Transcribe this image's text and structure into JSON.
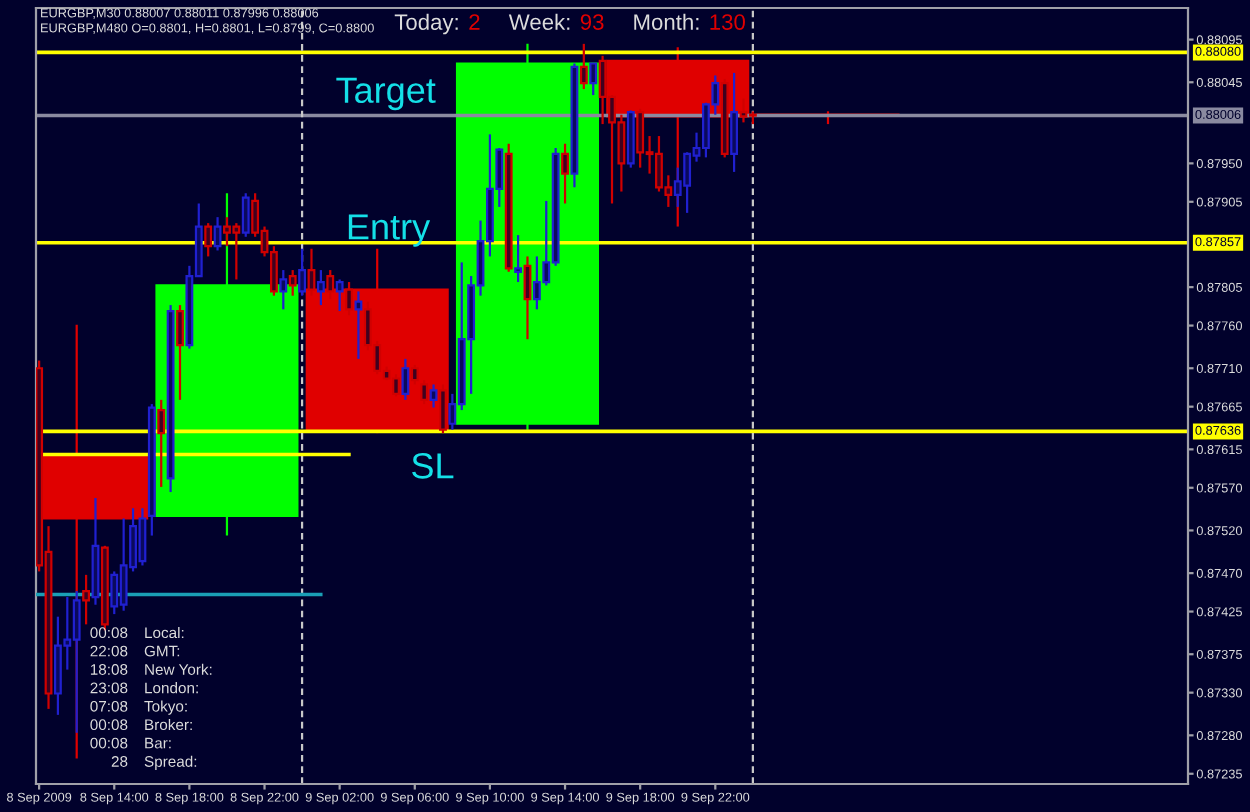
{
  "chart_data": {
    "type": "candlestick",
    "series": [
      {
        "x": [
          "2009-09-08T12:00",
          "2009-09-08T20:00",
          "2009-09-09T04:00",
          "2009-09-09T12:00",
          "2009-09-09T20:00",
          "2009-09-10T04:00"
        ],
        "ohlc": [
          [
            0.87609,
            0.87761,
            0.87253,
            0.87534
          ],
          [
            0.87537,
            0.87915,
            0.87514,
            0.87807
          ],
          [
            0.87802,
            0.8785,
            0.87634,
            0.87638
          ],
          [
            0.87645,
            0.8809,
            0.87638,
            0.88067
          ],
          [
            0.8807,
            0.88086,
            0.87876,
            0.88005
          ],
          [
            0.88007,
            0.88011,
            0.87996,
            0.88006
          ]
        ],
        "colors": [
          "#e00000",
          "#00ff00",
          "#e00000",
          "#00ff00",
          "#e00000",
          "#e00000"
        ]
      },
      {
        "x": [
          "2009-09-08T10:00",
          "2009-09-08T10:30",
          "2009-09-08T11:00",
          "2009-09-08T11:30",
          "2009-09-08T12:00",
          "2009-09-08T12:30",
          "2009-09-08T13:00",
          "2009-09-08T13:30",
          "2009-09-08T14:00",
          "2009-09-08T14:30",
          "2009-09-08T15:00",
          "2009-09-08T15:30",
          "2009-09-08T16:00",
          "2009-09-08T16:30",
          "2009-09-08T17:00",
          "2009-09-08T17:30",
          "2009-09-08T18:00",
          "2009-09-08T18:30",
          "2009-09-08T19:00",
          "2009-09-08T19:30",
          "2009-09-08T20:00",
          "2009-09-08T20:30",
          "2009-09-08T21:00",
          "2009-09-08T21:30",
          "2009-09-08T22:00",
          "2009-09-08T22:30",
          "2009-09-08T23:00",
          "2009-09-08T23:30",
          "2009-09-09T00:00",
          "2009-09-09T00:30",
          "2009-09-09T01:00",
          "2009-09-09T01:30",
          "2009-09-09T02:00",
          "2009-09-09T02:30",
          "2009-09-09T03:00",
          "2009-09-09T03:30",
          "2009-09-09T04:00",
          "2009-09-09T04:30",
          "2009-09-09T05:00",
          "2009-09-09T05:30",
          "2009-09-09T06:00",
          "2009-09-09T06:30",
          "2009-09-09T07:00",
          "2009-09-09T07:30",
          "2009-09-09T08:00",
          "2009-09-09T08:30",
          "2009-09-09T09:00",
          "2009-09-09T09:30",
          "2009-09-09T10:00",
          "2009-09-09T10:30",
          "2009-09-09T11:00",
          "2009-09-09T11:30",
          "2009-09-09T12:00",
          "2009-09-09T12:30",
          "2009-09-09T13:00",
          "2009-09-09T13:30",
          "2009-09-09T14:00",
          "2009-09-09T14:30",
          "2009-09-09T15:00",
          "2009-09-09T15:30",
          "2009-09-09T16:00",
          "2009-09-09T16:30",
          "2009-09-09T17:00",
          "2009-09-09T17:30",
          "2009-09-09T18:00",
          "2009-09-09T18:30",
          "2009-09-09T19:00",
          "2009-09-09T19:30",
          "2009-09-09T20:00",
          "2009-09-09T20:30",
          "2009-09-09T21:00",
          "2009-09-09T21:30",
          "2009-09-09T22:00",
          "2009-09-09T22:30",
          "2009-09-09T23:00",
          "2009-09-09T23:30",
          "2009-09-10T00:00"
        ],
        "ohlc": [
          [
            0.8771,
            0.87719,
            0.87472,
            0.87479
          ],
          [
            0.87495,
            0.87525,
            0.87311,
            0.87329
          ],
          [
            0.87329,
            0.87419,
            0.87304,
            0.87385
          ],
          [
            0.87385,
            0.87442,
            0.87357,
            0.87392
          ],
          [
            0.87392,
            0.87449,
            0.87283,
            0.87438
          ],
          [
            0.87449,
            0.87468,
            0.8741,
            0.87438
          ],
          [
            0.87442,
            0.87558,
            0.87433,
            0.87502
          ],
          [
            0.875,
            0.87502,
            0.87403,
            0.8741
          ],
          [
            0.87431,
            0.87472,
            0.87422,
            0.87468
          ],
          [
            0.87433,
            0.87534,
            0.87426,
            0.87479
          ],
          [
            0.87477,
            0.87546,
            0.87472,
            0.87525
          ],
          [
            0.87484,
            0.87546,
            0.87479,
            0.87534
          ],
          [
            0.87537,
            0.87668,
            0.87514,
            0.87664
          ],
          [
            0.87661,
            0.87673,
            0.87571,
            0.87634
          ],
          [
            0.87581,
            0.87784,
            0.87565,
            0.87777
          ],
          [
            0.87777,
            0.87784,
            0.87673,
            0.87737
          ],
          [
            0.87737,
            0.8783,
            0.87733,
            0.87818
          ],
          [
            0.87818,
            0.87903,
            0.87818,
            0.87876
          ],
          [
            0.87876,
            0.8788,
            0.87841,
            0.87853
          ],
          [
            0.87853,
            0.87887,
            0.87848,
            0.87876
          ],
          [
            0.87876,
            0.87887,
            0.87853,
            0.87869
          ],
          [
            0.87876,
            0.8788,
            0.87814,
            0.87869
          ],
          [
            0.87869,
            0.87915,
            0.87864,
            0.8791
          ],
          [
            0.87906,
            0.87915,
            0.87864,
            0.87869
          ],
          [
            0.87871,
            0.87876,
            0.87841,
            0.87846
          ],
          [
            0.87846,
            0.87853,
            0.87795,
            0.878
          ],
          [
            0.878,
            0.87825,
            0.87779,
            0.87814
          ],
          [
            0.87818,
            0.87825,
            0.87795,
            0.87807
          ],
          [
            0.878,
            0.8785,
            0.87795,
            0.87825
          ],
          [
            0.87825,
            0.8785,
            0.87795,
            0.87802
          ],
          [
            0.878,
            0.87825,
            0.87784,
            0.87811
          ],
          [
            0.87818,
            0.87825,
            0.87791,
            0.878
          ],
          [
            0.878,
            0.87814,
            0.87777,
            0.87811
          ],
          [
            0.87802,
            0.87811,
            0.87772,
            0.87779
          ],
          [
            0.87779,
            0.878,
            0.87721,
            0.87788
          ],
          [
            0.87779,
            0.87788,
            0.87731,
            0.87737
          ],
          [
            0.87737,
            0.87742,
            0.87703,
            0.87707
          ],
          [
            0.87707,
            0.87712,
            0.87696,
            0.87698
          ],
          [
            0.87698,
            0.87703,
            0.87677,
            0.8768
          ],
          [
            0.8768,
            0.87721,
            0.87673,
            0.8771
          ],
          [
            0.8771,
            0.87714,
            0.87691,
            0.87696
          ],
          [
            0.87691,
            0.87696,
            0.87668,
            0.87673
          ],
          [
            0.87673,
            0.87691,
            0.87664,
            0.87684
          ],
          [
            0.87684,
            0.87691,
            0.87634,
            0.87638
          ],
          [
            0.87645,
            0.8768,
            0.87638,
            0.87668
          ],
          [
            0.87668,
            0.87834,
            0.87661,
            0.87744
          ],
          [
            0.87744,
            0.87818,
            0.8768,
            0.87807
          ],
          [
            0.87807,
            0.87883,
            0.87795,
            0.87859
          ],
          [
            0.87859,
            0.87984,
            0.87841,
            0.8792
          ],
          [
            0.8792,
            0.87968,
            0.87899,
            0.87966
          ],
          [
            0.87961,
            0.87973,
            0.87823,
            0.87827
          ],
          [
            0.87823,
            0.87866,
            0.87811,
            0.87827
          ],
          [
            0.8783,
            0.87841,
            0.87744,
            0.87791
          ],
          [
            0.87791,
            0.87841,
            0.87779,
            0.87811
          ],
          [
            0.87811,
            0.87906,
            0.87807,
            0.87834
          ],
          [
            0.87834,
            0.87968,
            0.8783,
            0.87961
          ],
          [
            0.87961,
            0.87973,
            0.87903,
            0.87938
          ],
          [
            0.87938,
            0.88067,
            0.87922,
            0.88063
          ],
          [
            0.88063,
            0.8809,
            0.88037,
            0.88044
          ],
          [
            0.88044,
            0.88067,
            0.8803,
            0.88067
          ],
          [
            0.8807,
            0.88076,
            0.87996,
            0.88028
          ],
          [
            0.88028,
            0.8803,
            0.87903,
            0.87998
          ],
          [
            0.87998,
            0.88007,
            0.87917,
            0.8795
          ],
          [
            0.8795,
            0.88012,
            0.87945,
            0.8801
          ],
          [
            0.8801,
            0.88014,
            0.87945,
            0.87963
          ],
          [
            0.87963,
            0.87982,
            0.87938,
            0.87961
          ],
          [
            0.87961,
            0.87982,
            0.87917,
            0.87922
          ],
          [
            0.87922,
            0.87936,
            0.87899,
            0.87913
          ],
          [
            0.87913,
            0.87945,
            0.87899,
            0.87929
          ],
          [
            0.87924,
            0.87963,
            0.87892,
            0.87961
          ],
          [
            0.87959,
            0.87986,
            0.87952,
            0.87968
          ],
          [
            0.87968,
            0.88021,
            0.87957,
            0.88019
          ],
          [
            0.88019,
            0.88053,
            0.88007,
            0.88044
          ],
          [
            0.88044,
            0.88049,
            0.87957,
            0.87961
          ],
          [
            0.87961,
            0.88056,
            0.8794,
            0.8801
          ],
          [
            0.8801,
            0.88026,
            0.87998,
            0.88005
          ],
          [
            0.88007,
            0.88011,
            0.87996,
            0.88006
          ]
        ],
        "colors": [
          "#d00000",
          "#d00000",
          "#2020d0",
          "#2020d0",
          "#2020d0",
          "#d00000",
          "#2020d0",
          "#d00000",
          "#2020d0",
          "#2020d0",
          "#2020d0",
          "#2020d0",
          "#2020d0",
          "#d00000",
          "#2020d0",
          "#d00000",
          "#2020d0",
          "#2020d0",
          "#d00000",
          "#2020d0",
          "#d00000",
          "#d00000",
          "#2020d0",
          "#d00000",
          "#d00000",
          "#d00000",
          "#2020d0",
          "#d00000",
          "#2020d0",
          "#d00000",
          "#2020d0",
          "#d00000",
          "#2020d0",
          "#d00000",
          "#2020d0",
          "#d00000",
          "#d00000",
          "#d00000",
          "#d00000",
          "#2020d0",
          "#d00000",
          "#d00000",
          "#2020d0",
          "#d00000",
          "#2020d0",
          "#2020d0",
          "#2020d0",
          "#2020d0",
          "#2020d0",
          "#2020d0",
          "#d00000",
          "#2020d0",
          "#d00000",
          "#2020d0",
          "#2020d0",
          "#2020d0",
          "#d00000",
          "#2020d0",
          "#d00000",
          "#2020d0",
          "#d00000",
          "#d00000",
          "#d00000",
          "#2020d0",
          "#d00000",
          "#d00000",
          "#d00000",
          "#d00000",
          "#2020d0",
          "#2020d0",
          "#2020d0",
          "#2020d0",
          "#2020d0",
          "#d00000",
          "#2020d0",
          "#d00000",
          "#d00000"
        ]
      },
      {
        "type": "line",
        "x": [
          "2009-09-08T09:50",
          "2009-09-09T02:30"
        ],
        "values": [
          0.87609,
          0.87609
        ],
        "color": "#ffff00"
      },
      {
        "type": "line",
        "x": [
          "2009-09-08T09:50",
          "2009-09-09T01:00"
        ],
        "values": [
          0.87445,
          0.87445
        ],
        "color": "#1a9fb5"
      }
    ],
    "xlim": [
      "2009-09-08T09:50",
      "2009-09-10T23:10"
    ],
    "xticks": [
      {
        "value": "2009-09-08T10:00",
        "label": "8 Sep 2009"
      },
      {
        "value": "2009-09-08T14:00",
        "label": "8 Sep 14:00"
      },
      {
        "value": "2009-09-08T18:00",
        "label": "8 Sep 18:00"
      },
      {
        "value": "2009-09-08T22:00",
        "label": "8 Sep 22:00"
      },
      {
        "value": "2009-09-09T02:00",
        "label": "9 Sep 02:00"
      },
      {
        "value": "2009-09-09T06:00",
        "label": "9 Sep 06:00"
      },
      {
        "value": "2009-09-09T10:00",
        "label": "9 Sep 10:00"
      },
      {
        "value": "2009-09-09T14:00",
        "label": "9 Sep 14:00"
      },
      {
        "value": "2009-09-09T18:00",
        "label": "9 Sep 18:00"
      },
      {
        "value": "2009-09-09T22:00",
        "label": "9 Sep 22:00"
      }
    ],
    "ylim": [
      0.87223,
      0.88132
    ],
    "yticks": [
      0.88095,
      0.88045,
      {
        "value": 0.8795,
        "label": "0.87950"
      },
      0.87905,
      0.87805,
      {
        "value": 0.8776,
        "label": "0.87760"
      },
      {
        "value": 0.8771,
        "label": "0.87710"
      },
      0.87665,
      0.87615,
      {
        "value": 0.8757,
        "label": "0.87570"
      },
      {
        "value": 0.8752,
        "label": "0.87520"
      },
      {
        "value": 0.8747,
        "label": "0.87470"
      },
      0.87425,
      0.87375,
      {
        "value": 0.8733,
        "label": "0.87330"
      },
      {
        "value": 0.8728,
        "label": "0.87280"
      },
      0.87235
    ],
    "ref_lines": [
      {
        "axis": "y",
        "value": 0.8808,
        "label": "0.88080",
        "color": "#ffff00"
      },
      {
        "axis": "y",
        "value": 0.87857,
        "label": "0.87857",
        "color": "#ffff00"
      },
      {
        "axis": "y",
        "value": 0.87636,
        "label": "0.87636",
        "color": "#ffff00"
      },
      {
        "axis": "y",
        "value": 0.88006,
        "label": "0.88006",
        "color": "#8a8aa0"
      },
      {
        "axis": "x",
        "value": "2009-09-09T00:00",
        "color": "#c8c8c8",
        "line_style": "dashed"
      },
      {
        "axis": "x",
        "value": "2009-09-10T00:00",
        "color": "#c8c8c8",
        "line_style": "dashed"
      }
    ],
    "annotations": [
      "EURGBP,M30 0.88007 0.88011 0.87996 0.88006",
      "EURGBP,M480 O=0.8801, H=0.8801, L=0.8799, C=0.8800",
      "Today: 2",
      "Week: 93",
      "Month: 130",
      "00:08 Local:",
      "22:08 GMT:",
      "18:08 New York:",
      "23:08 London:",
      "07:08 Tokyo:",
      "00:08 Broker:",
      "00:08 Bar:",
      "28 Spread:",
      "Target",
      "Entry",
      "SL"
    ]
  }
}
